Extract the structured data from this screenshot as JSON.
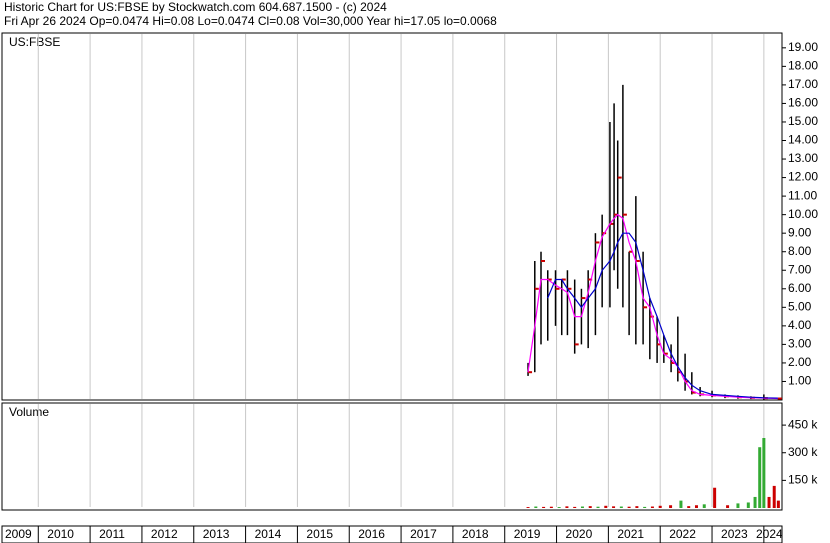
{
  "chart_data": [
    {
      "type": "ohlc",
      "title": "Historic Chart for US:FBSE by Stockwatch.com 604.687.1500 - (c) 2024",
      "subtitle": "Fri Apr 26 2024   Op=0.0474   Hi=0.08   Lo=0.0474   Cl=0.08   Vol=30,000   Year hi=17.05   lo=0.0068",
      "label": "US:FBSE",
      "x": [
        2019.45,
        2019.58,
        2019.7,
        2019.83,
        2019.98,
        2020.1,
        2020.21,
        2020.35,
        2020.48,
        2020.61,
        2020.75,
        2020.88,
        2021.03,
        2021.11,
        2021.18,
        2021.28,
        2021.4,
        2021.53,
        2021.67,
        2021.8,
        2021.94,
        2022.07,
        2022.21,
        2022.34,
        2022.48,
        2022.61,
        2022.77,
        2023.0,
        2023.25,
        2023.5,
        2023.75,
        2024.0,
        2024.27
      ],
      "high": [
        2,
        7.5,
        8,
        7,
        7,
        6.5,
        7,
        6.5,
        6,
        7,
        9,
        10,
        15,
        16,
        14,
        17,
        8,
        11,
        8,
        5.5,
        4.5,
        3.5,
        3,
        4.5,
        2.5,
        1.5,
        0.7,
        0.5,
        0.3,
        0.25,
        0.2,
        0.3,
        0.1
      ],
      "low": [
        1.3,
        1.5,
        3,
        3.2,
        4,
        3.5,
        3.5,
        2.5,
        3,
        2.8,
        3.5,
        5,
        5,
        7,
        6,
        5,
        3.5,
        3,
        3,
        2.2,
        2,
        2,
        1.5,
        1,
        0.5,
        0.3,
        0.2,
        0.15,
        0.1,
        0.07,
        0.05,
        0.02,
        0.0474
      ],
      "close": [
        1.5,
        6,
        7.5,
        6.5,
        6,
        6.5,
        6,
        3,
        5.5,
        6.5,
        8.5,
        9,
        9.5,
        10,
        12,
        10,
        8,
        7.5,
        5,
        4.5,
        3,
        2.5,
        2,
        1.5,
        1,
        0.4,
        0.3,
        0.25,
        0.2,
        0.15,
        0.12,
        0.1,
        0.08
      ],
      "bar_color": "#000000",
      "close_color": "#cc0000",
      "series": [
        {
          "color": "#ff00ff",
          "values": [
            1.5,
            4,
            6.5,
            6.5,
            6.2,
            6,
            5.8,
            4.5,
            4.5,
            5.8,
            7.5,
            8.8,
            9.5,
            9.8,
            10,
            9.8,
            8.5,
            7.5,
            5.5,
            5,
            3.5,
            2.5,
            2.2,
            1.8,
            1,
            0.5,
            0.3,
            0.25,
            0.2,
            0.15,
            0.12,
            0.1,
            0.08
          ]
        },
        {
          "color": "#0000cc",
          "values": [
            null,
            null,
            null,
            5.5,
            6.5,
            6.5,
            6,
            5.5,
            5,
            5.5,
            6,
            7,
            7.5,
            8,
            8.5,
            9,
            9,
            8.5,
            7,
            5.5,
            4.5,
            3.5,
            2.5,
            1.8,
            1.2,
            0.8,
            0.5,
            0.3,
            0.25,
            0.2,
            0.15,
            0.12,
            0.1
          ]
        }
      ],
      "xlim": [
        2009.3,
        2024.35
      ],
      "ylim": [
        0,
        19.8
      ],
      "yticks": [
        {
          "value": 1,
          "label": "1.00"
        },
        {
          "value": 2,
          "label": "2.00"
        },
        {
          "value": 3,
          "label": "3.00"
        },
        {
          "value": 4,
          "label": "4.00"
        },
        {
          "value": 5,
          "label": "5.00"
        },
        {
          "value": 6,
          "label": "6.00"
        },
        {
          "value": 7,
          "label": "7.00"
        },
        {
          "value": 8,
          "label": "8.00"
        },
        {
          "value": 9,
          "label": "9.00"
        },
        {
          "value": 10,
          "label": "10.00"
        },
        {
          "value": 11,
          "label": "11.00"
        },
        {
          "value": 12,
          "label": "12.00"
        },
        {
          "value": 13,
          "label": "13.00"
        },
        {
          "value": 14,
          "label": "14.00"
        },
        {
          "value": 15,
          "label": "15.00"
        },
        {
          "value": 16,
          "label": "16.00"
        },
        {
          "value": 17,
          "label": "17.00"
        },
        {
          "value": 18,
          "label": "18.00"
        },
        {
          "value": 19,
          "label": "19.00"
        }
      ],
      "grid": true
    },
    {
      "type": "bar",
      "label": "Volume",
      "x": [
        2019.45,
        2019.6,
        2019.75,
        2019.9,
        2020.05,
        2020.2,
        2020.35,
        2020.5,
        2020.65,
        2020.8,
        2020.95,
        2021.1,
        2021.25,
        2021.4,
        2021.55,
        2021.7,
        2021.85,
        2022.0,
        2022.2,
        2022.4,
        2022.55,
        2022.7,
        2022.85,
        2023.05,
        2023.3,
        2023.5,
        2023.7,
        2023.83,
        2023.92,
        2024.0,
        2024.1,
        2024.2,
        2024.28
      ],
      "values": [
        5000,
        8000,
        6000,
        7000,
        5000,
        9000,
        6000,
        8000,
        10000,
        7000,
        12000,
        9000,
        8000,
        7000,
        10000,
        6000,
        8000,
        12000,
        15000,
        40000,
        10000,
        15000,
        20000,
        110000,
        15000,
        25000,
        30000,
        60000,
        330000,
        380000,
        60000,
        120000,
        40000
      ],
      "colors": [
        "#cc0000",
        "#33aa33",
        "#cc0000",
        "#cc0000",
        "#33aa33",
        "#cc0000",
        "#cc0000",
        "#33aa33",
        "#cc0000",
        "#33aa33",
        "#cc0000",
        "#cc0000",
        "#33aa33",
        "#cc0000",
        "#cc0000",
        "#33aa33",
        "#cc0000",
        "#cc0000",
        "#cc0000",
        "#33aa33",
        "#cc0000",
        "#cc0000",
        "#33aa33",
        "#cc0000",
        "#cc0000",
        "#33aa33",
        "#33aa33",
        "#33aa33",
        "#33aa33",
        "#33aa33",
        "#cc0000",
        "#cc0000",
        "#cc0000"
      ],
      "xlim": [
        2009.3,
        2024.35
      ],
      "ylim": [
        0,
        570000
      ],
      "yticks": [
        {
          "value": 150000,
          "label": "150 k"
        },
        {
          "value": 300000,
          "label": "300 k"
        },
        {
          "value": 450000,
          "label": "450 k"
        }
      ],
      "xticks": [
        2009,
        2010,
        2011,
        2012,
        2013,
        2014,
        2015,
        2016,
        2017,
        2018,
        2019,
        2020,
        2021,
        2022,
        2023,
        2024
      ],
      "grid": true
    }
  ]
}
